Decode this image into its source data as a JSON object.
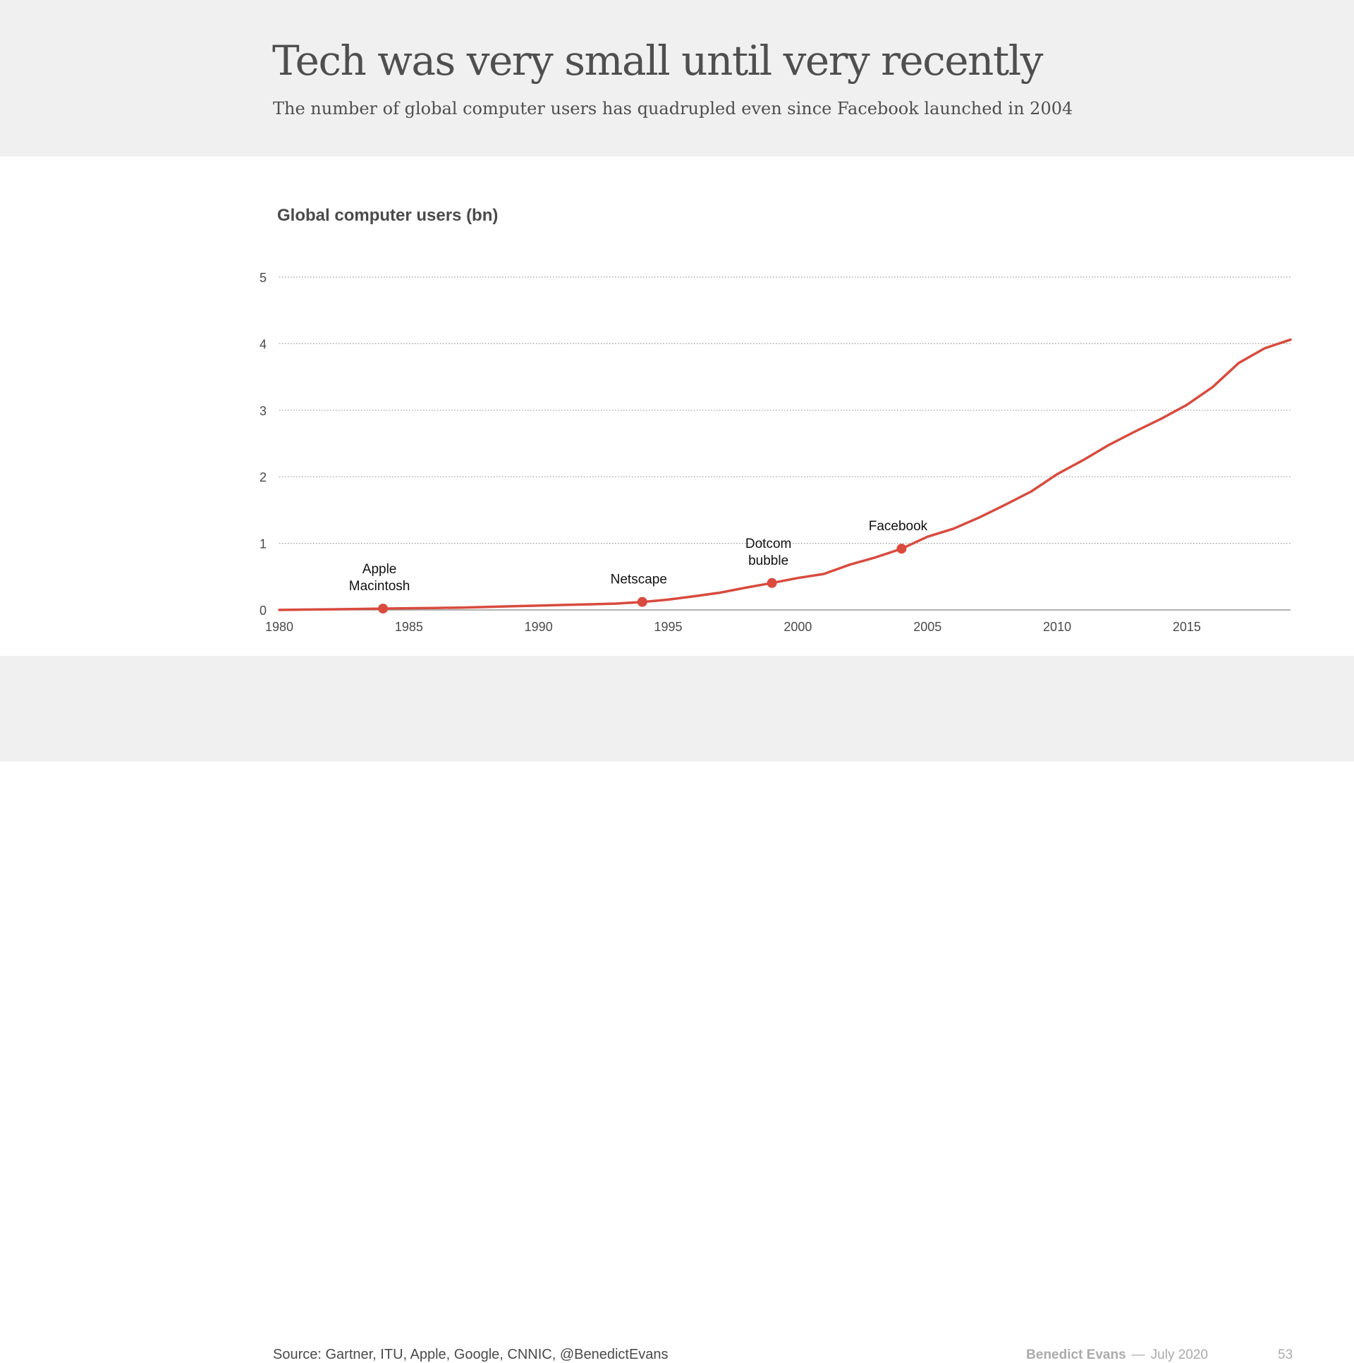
{
  "slide": {
    "title": "Tech was very small until very recently",
    "subtitle": "The number of global computer users has quadrupled even since Facebook launched in 2004",
    "source": "Source: Gartner, ITU, Apple, Google, CNNIC, @BenedictEvans",
    "author": "Benedict Evans",
    "separator": "—",
    "date": "July 2020",
    "page_number": "53"
  },
  "colors": {
    "line": "#d84b3e",
    "grid": "#9a9a9a",
    "axis": "#9a9a9a",
    "tick_text": "#4a4a4a",
    "annotation_text": "#111111",
    "header_bg": "#f0f0f0"
  },
  "chart_data": {
    "type": "line",
    "title": "Global computer users (bn)",
    "xlabel": "",
    "ylabel": "Global computer users (bn)",
    "xlim": [
      1980,
      2019
    ],
    "ylim": [
      0,
      5
    ],
    "grid": true,
    "xticks": [
      1980,
      1985,
      1990,
      1995,
      2000,
      2005,
      2010,
      2015
    ],
    "yticks": [
      0,
      1,
      2,
      3,
      4,
      5
    ],
    "series": [
      {
        "name": "Global computer users",
        "x": [
          1980,
          1981,
          1982,
          1983,
          1984,
          1985,
          1986,
          1987,
          1988,
          1989,
          1990,
          1991,
          1992,
          1993,
          1994,
          1995,
          1996,
          1997,
          1998,
          1999,
          2000,
          2001,
          2002,
          2003,
          2004,
          2005,
          2006,
          2007,
          2008,
          2009,
          2010,
          2011,
          2012,
          2013,
          2014,
          2015,
          2016,
          2017,
          2018,
          2019
        ],
        "values": [
          0.0,
          0.005,
          0.01,
          0.015,
          0.02,
          0.025,
          0.03,
          0.035,
          0.045,
          0.055,
          0.065,
          0.075,
          0.085,
          0.095,
          0.12,
          0.155,
          0.205,
          0.26,
          0.335,
          0.405,
          0.48,
          0.54,
          0.68,
          0.79,
          0.92,
          1.1,
          1.22,
          1.39,
          1.58,
          1.78,
          2.04,
          2.25,
          2.48,
          2.68,
          2.87,
          3.08,
          3.35,
          3.71,
          3.93,
          4.06
        ]
      }
    ],
    "annotations": [
      {
        "year": 1984,
        "value": 0.02,
        "lines": [
          "Apple",
          "Macintosh"
        ]
      },
      {
        "year": 1994,
        "value": 0.12,
        "lines": [
          "Netscape"
        ]
      },
      {
        "year": 1999,
        "value": 0.405,
        "lines": [
          "Dotcom",
          "bubble"
        ]
      },
      {
        "year": 2004,
        "value": 0.92,
        "lines": [
          "Facebook"
        ]
      }
    ]
  }
}
